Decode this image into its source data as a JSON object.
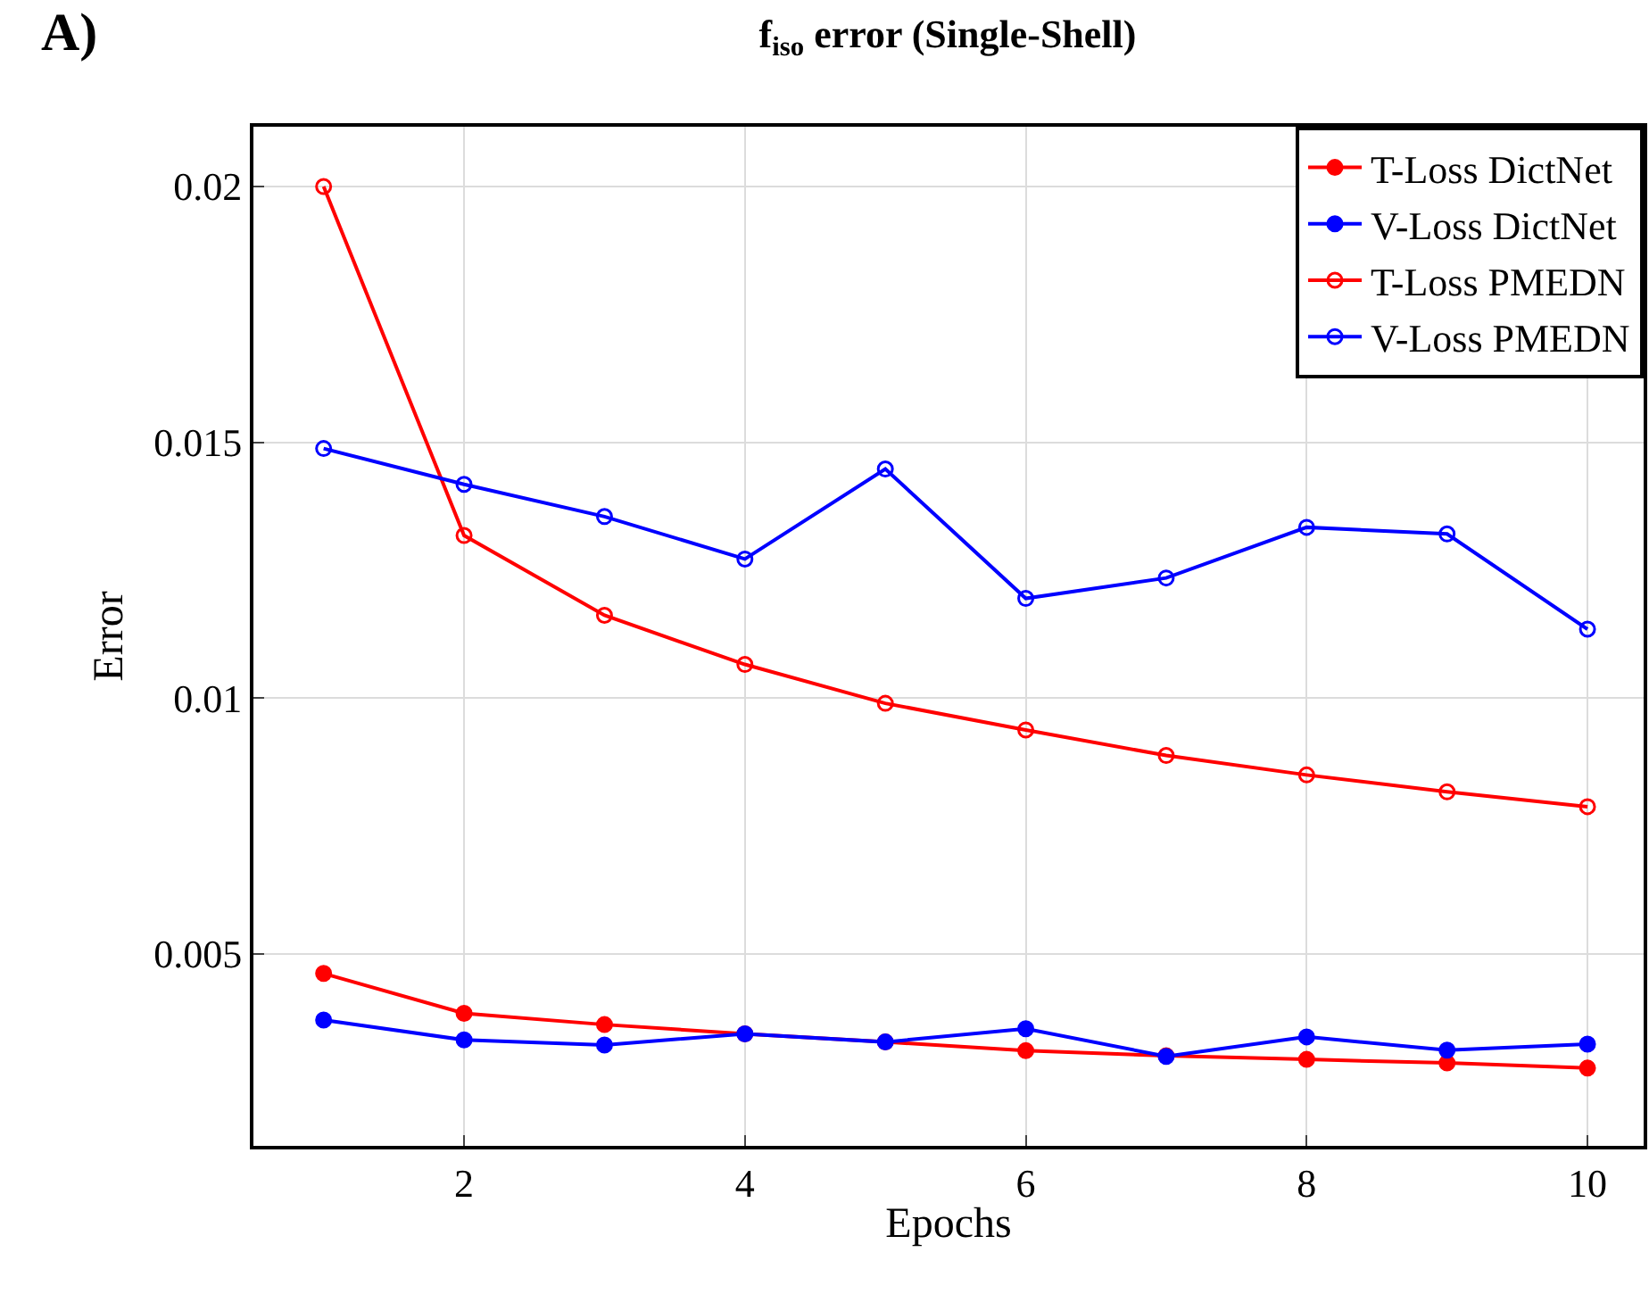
{
  "chart_data": {
    "type": "line",
    "title": "f$_{iso}$ error (Single-Shell)",
    "xlabel": "Epochs",
    "ylabel": "Error",
    "annotations": [
      "A)"
    ],
    "x": [
      1,
      2,
      3,
      4,
      5,
      6,
      7,
      8,
      9,
      10
    ],
    "series": [
      {
        "name": "T-Loss DictNet",
        "color": "#ff0000",
        "marker": "circle",
        "values": [
          0.00462,
          0.00384,
          0.00362,
          0.00344,
          0.00328,
          0.00311,
          0.00301,
          0.00294,
          0.00287,
          0.00277
        ]
      },
      {
        "name": "V-Loss DictNet",
        "color": "#0000ff",
        "marker": "circle",
        "values": [
          0.00371,
          0.00332,
          0.00322,
          0.00344,
          0.00328,
          0.00354,
          0.003,
          0.00338,
          0.00312,
          0.00324
        ]
      },
      {
        "name": "T-Loss PMEDN",
        "color": "#ff0000",
        "marker": "circle-open",
        "values": [
          0.02,
          0.01318,
          0.01162,
          0.01066,
          0.0099,
          0.00938,
          0.00888,
          0.0085,
          0.00817,
          0.00788
        ]
      },
      {
        "name": "V-Loss PMEDN",
        "color": "#0000ff",
        "marker": "circle-open",
        "values": [
          0.01488,
          0.01418,
          0.01355,
          0.01272,
          0.01448,
          0.01195,
          0.01235,
          0.01334,
          0.01321,
          0.01135
        ]
      }
    ],
    "xlim": [
      0.5,
      10.4
    ],
    "xticks": [
      2,
      4,
      6,
      8,
      10
    ],
    "ylim": [
      0.00125,
      0.02117
    ],
    "yticks": [
      0.005,
      0.01,
      0.015,
      0.02
    ],
    "grid": true,
    "legend": "top right",
    "line_style": "solid"
  }
}
